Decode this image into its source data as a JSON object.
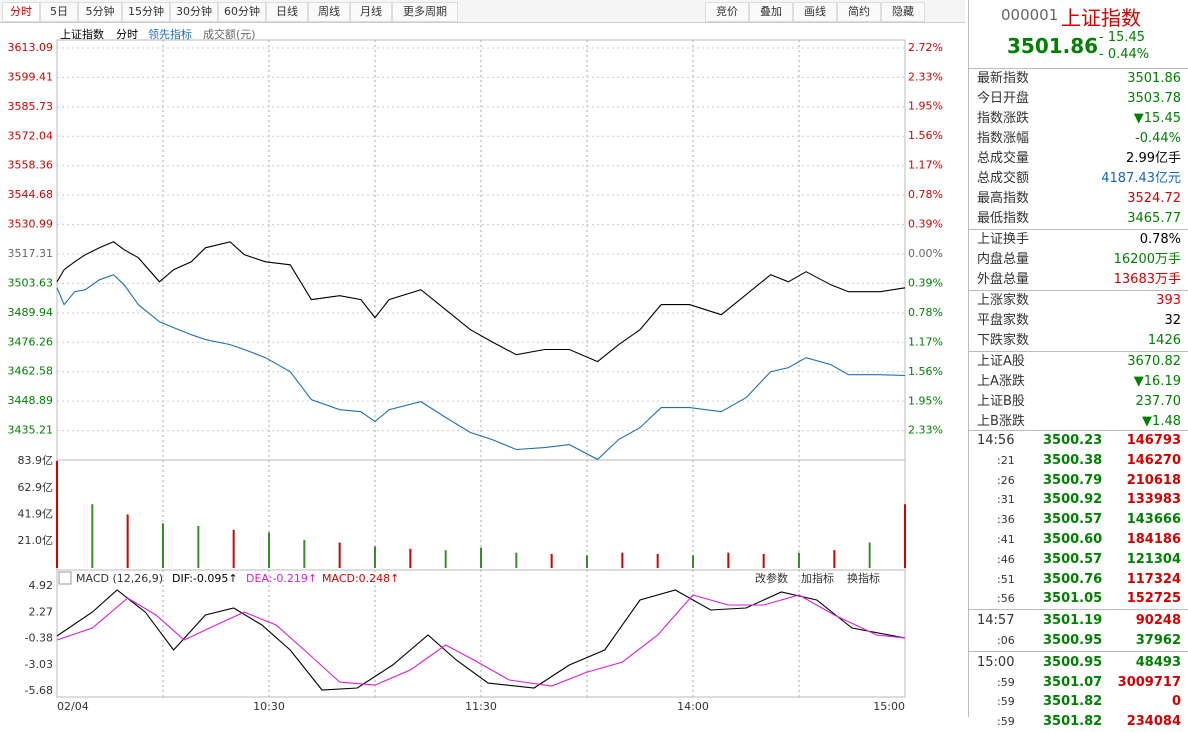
{
  "toolbar": {
    "left": [
      "分时",
      "5日",
      "5分钟",
      "15分钟",
      "30分钟",
      "60分钟",
      "日线",
      "周线",
      "月线",
      "更多周期"
    ],
    "right": [
      "竞价",
      "叠加",
      "画线",
      "简约",
      "隐藏"
    ]
  },
  "chart_header": [
    "上证指数",
    "分时",
    "领先指标",
    "成交额(元)"
  ],
  "macd_header": {
    "name": "MACD (12,26,9)",
    "dif": "DIF:-0.095↑",
    "dea": "DEA:-0.219↑",
    "macd": "MACD:0.248↑",
    "buttons": [
      "改参数",
      "加指标",
      "换指标"
    ]
  },
  "chart_data": [
    {
      "type": "line",
      "xlim": [
        0,
        240
      ],
      "xticks": [
        {
          "value": 0,
          "label": "02/04"
        },
        {
          "value": 60,
          "label": "10:30"
        },
        {
          "value": 120,
          "label": "11:30"
        },
        {
          "value": 180,
          "label": "14:00"
        },
        {
          "value": 240,
          "label": "15:00"
        }
      ],
      "ylim": [
        3421.53,
        3613.09
      ],
      "yticks": [
        3613.09,
        3599.41,
        3585.73,
        3572.04,
        3558.36,
        3544.68,
        3530.99,
        3517.31,
        3503.63,
        3489.94,
        3476.26,
        3462.58,
        3448.89,
        3435.21
      ],
      "y2lim": [
        -2.72,
        2.72
      ],
      "y2ticks": [
        {
          "value": 2.72,
          "label": "2.72%"
        },
        {
          "value": 2.33,
          "label": "2.33%"
        },
        {
          "value": 1.95,
          "label": "1.95%"
        },
        {
          "value": 1.56,
          "label": "1.56%"
        },
        {
          "value": 1.17,
          "label": "1.17%"
        },
        {
          "value": 0.78,
          "label": "0.78%"
        },
        {
          "value": 0.39,
          "label": "0.39%"
        },
        {
          "value": 0,
          "label": "0.00%"
        },
        {
          "value": -0.39,
          "label": "0.39%"
        },
        {
          "value": -0.78,
          "label": "0.78%"
        },
        {
          "value": -1.17,
          "label": "1.17%"
        },
        {
          "value": -1.56,
          "label": "1.56%"
        },
        {
          "value": -1.95,
          "label": "1.95%"
        },
        {
          "value": -2.33,
          "label": "2.33%"
        }
      ],
      "x": [
        0,
        2,
        5,
        8,
        12,
        16,
        19,
        23,
        29,
        33,
        38,
        42,
        49,
        53,
        59,
        66,
        72,
        80,
        86,
        90,
        94,
        103,
        110,
        117,
        123,
        130,
        138,
        145,
        153,
        159,
        165,
        171,
        179,
        188,
        195,
        202,
        207,
        212,
        219,
        224,
        233,
        240
      ],
      "series": [
        {
          "name": "上证指数",
          "color": "#000000",
          "values": [
            3504.4,
            3510.0,
            3513.7,
            3517.0,
            3520.2,
            3523.0,
            3519.3,
            3515.6,
            3504.4,
            3510.0,
            3513.7,
            3520.2,
            3523.0,
            3517.0,
            3513.7,
            3512.3,
            3496.1,
            3497.9,
            3496.1,
            3487.7,
            3496.1,
            3500.7,
            3491.4,
            3482.1,
            3476.6,
            3470.5,
            3472.9,
            3472.9,
            3467.3,
            3475.2,
            3482.1,
            3493.8,
            3493.8,
            3489.1,
            3498.4,
            3507.7,
            3504.4,
            3509.1,
            3503.0,
            3499.8,
            3499.8,
            3501.6
          ]
        },
        {
          "name": "领先指标",
          "color": "#1f6fb5",
          "values": [
            3501.6,
            3493.8,
            3499.8,
            3500.7,
            3505.3,
            3507.7,
            3503.0,
            3493.8,
            3485.8,
            3483.1,
            3479.8,
            3477.5,
            3475.2,
            3472.9,
            3469.1,
            3462.6,
            3449.6,
            3444.9,
            3444.0,
            3439.4,
            3444.9,
            3448.7,
            3441.3,
            3434.3,
            3431.1,
            3426.4,
            3427.3,
            3428.7,
            3421.8,
            3431.1,
            3436.6,
            3445.9,
            3445.9,
            3444.0,
            3450.5,
            3462.6,
            3464.5,
            3469.1,
            3465.9,
            3461.2,
            3461.2,
            3460.8
          ]
        }
      ]
    },
    {
      "type": "bar",
      "xlim": [
        0,
        240
      ],
      "ylim": [
        0,
        83.9
      ],
      "yticks": [
        {
          "value": 83.9,
          "label": "83.9亿"
        },
        {
          "value": 62.9,
          "label": "62.9亿"
        },
        {
          "value": 41.9,
          "label": "41.9亿"
        },
        {
          "value": 21.0,
          "label": "21.0亿"
        }
      ],
      "x": [
        0,
        10,
        20,
        30,
        40,
        50,
        60,
        70,
        80,
        90,
        100,
        110,
        120,
        130,
        140,
        150,
        160,
        170,
        180,
        190,
        200,
        210,
        220,
        230,
        240
      ],
      "values": [
        84,
        50,
        42,
        35,
        33,
        30,
        28,
        22,
        20,
        17,
        15,
        14,
        16,
        12,
        11,
        10,
        12,
        11,
        10,
        12,
        11,
        12,
        14,
        20,
        50
      ],
      "colors": [
        "#d40000",
        "#3a8a2e",
        "#d40000",
        "#3a8a2e",
        "#3a8a2e",
        "#d40000",
        "#3a8a2e",
        "#3a8a2e",
        "#d40000",
        "#3a8a2e",
        "#d40000",
        "#3a8a2e",
        "#3a8a2e",
        "#3a8a2e",
        "#d40000",
        "#3a8a2e",
        "#d40000",
        "#d40000",
        "#3a8a2e",
        "#d40000",
        "#d40000",
        "#3a8a2e",
        "#d40000",
        "#3a8a2e",
        "#d40000"
      ]
    },
    {
      "type": "line",
      "xlim": [
        0,
        240
      ],
      "ylim": [
        -5.68,
        4.92
      ],
      "yticks": [
        4.92,
        2.27,
        -0.38,
        -3.03,
        -5.68
      ],
      "series": [
        {
          "name": "DIF",
          "color": "#000000",
          "x": [
            0,
            10,
            17,
            25,
            33,
            42,
            50,
            58,
            66,
            75,
            85,
            95,
            105,
            113,
            122,
            135,
            145,
            155,
            165,
            175,
            185,
            195,
            205,
            215,
            225,
            240
          ],
          "values": [
            -0.13,
            2.29,
            4.52,
            2.29,
            -1.54,
            1.99,
            2.7,
            0.98,
            -1.54,
            -5.58,
            -5.38,
            -3.06,
            -0.03,
            -2.55,
            -4.88,
            -5.38,
            -3.06,
            -1.54,
            3.51,
            4.52,
            2.5,
            2.7,
            4.31,
            3.51,
            0.68,
            -0.33
          ]
        },
        {
          "name": "DEA",
          "color": "#d81ed8",
          "x": [
            0,
            10,
            20,
            28,
            36,
            45,
            53,
            62,
            70,
            80,
            90,
            100,
            110,
            118,
            128,
            140,
            150,
            160,
            170,
            180,
            190,
            200,
            210,
            220,
            232,
            240
          ],
          "values": [
            -0.53,
            0.68,
            3.71,
            1.99,
            -0.53,
            0.98,
            2.29,
            0.98,
            -1.54,
            -4.78,
            -5.08,
            -3.56,
            -1.04,
            -2.55,
            -4.57,
            -5.18,
            -3.77,
            -2.76,
            -0.03,
            4.01,
            3.0,
            3.0,
            4.01,
            1.99,
            -0.03,
            -0.33
          ]
        }
      ]
    }
  ],
  "quote": {
    "code": "000001",
    "name": "上证指数",
    "price": "3501.86",
    "change": "- 15.45",
    "pct": "- 0.44%",
    "rows": [
      [
        "最新指数",
        "3501.86",
        "#008000"
      ],
      [
        "今日开盘",
        "3503.78",
        "#008000"
      ],
      [
        "指数涨跌",
        "▼15.45",
        "#008000"
      ],
      [
        "指数涨幅",
        "-0.44%",
        "#008000"
      ],
      [
        "总成交量",
        "2.99亿手",
        "#000000"
      ],
      [
        "总成交额",
        "4187.43亿元",
        "#1565c0"
      ],
      [
        "最高指数",
        "3524.72",
        "#d40000"
      ],
      [
        "最低指数",
        "3465.77",
        "#008000"
      ],
      [
        "上证换手",
        "0.78%",
        "#000000"
      ],
      [
        "内盘总量",
        "16200万手",
        "#008000"
      ],
      [
        "外盘总量",
        "13683万手",
        "#d40000"
      ],
      [
        "上涨家数",
        "393",
        "#d40000"
      ],
      [
        "平盘家数",
        "32",
        "#000000"
      ],
      [
        "下跌家数",
        "1426",
        "#008000"
      ],
      [
        "上证A股",
        "3670.82",
        "#008000"
      ],
      [
        "上A涨跌",
        "▼16.19",
        "#008000"
      ],
      [
        "上证B股",
        "237.70",
        "#008000"
      ],
      [
        "上B涨跌",
        "▼1.48",
        "#008000"
      ]
    ],
    "ticks": [
      [
        "14:56",
        "3500.23",
        "146793",
        "#d40000"
      ],
      [
        ":21",
        "3500.38",
        "146270",
        "#d40000"
      ],
      [
        ":26",
        "3500.79",
        "210618",
        "#d40000"
      ],
      [
        ":31",
        "3500.92",
        "133983",
        "#d40000"
      ],
      [
        ":36",
        "3500.57",
        "143666",
        "#008000"
      ],
      [
        ":41",
        "3500.60",
        "184186",
        "#d40000"
      ],
      [
        ":46",
        "3500.57",
        "121304",
        "#008000"
      ],
      [
        ":51",
        "3500.76",
        "117324",
        "#d40000"
      ],
      [
        ":56",
        "3501.05",
        "152725",
        "#d40000"
      ],
      [
        "14:57",
        "3501.19",
        "90248",
        "#d40000"
      ],
      [
        ":06",
        "3500.95",
        "37962",
        "#008000"
      ],
      [
        "15:00",
        "3500.95",
        "48493",
        "#008000"
      ],
      [
        ":59",
        "3501.07",
        "3009717",
        "#d40000"
      ],
      [
        ":59",
        "3501.82",
        "0",
        "#d40000"
      ],
      [
        ":59",
        "3501.82",
        "234084",
        "#d40000"
      ]
    ]
  }
}
